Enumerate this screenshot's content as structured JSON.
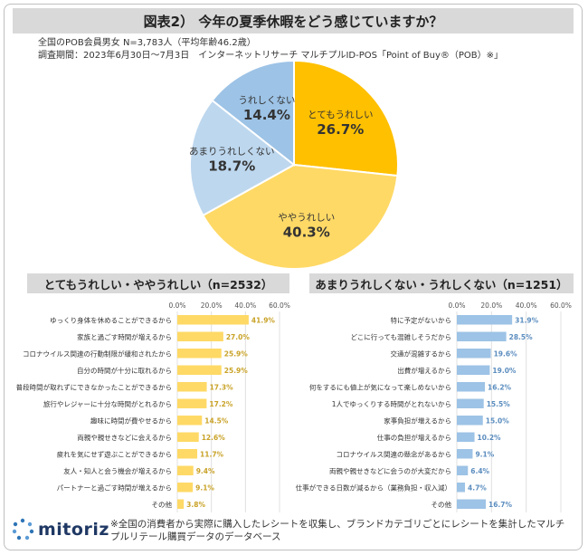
{
  "header": {
    "title": "図表2） 今年の夏季休暇をどう感じていますか？",
    "sample": "全国のPOB会員男女 N=3,783人（平均年齢46.2歳）",
    "period": "調査期間：2023年6月30日～7月3日　インターネットリサーチ マルチプルID-POS「Point of Buy®（POB）※」"
  },
  "colors": {
    "very_happy": "#ffc000",
    "somewhat_happy": "#ffd966",
    "not_very_happy": "#bdd7ee",
    "not_happy": "#9dc3e6",
    "left_bar": "#ffd966",
    "left_value": "#c9a227",
    "right_bar": "#9dc3e6",
    "right_value": "#5b8dbf"
  },
  "chart_data": [
    {
      "type": "pie",
      "categories": [
        "とてもうれしい",
        "ややうれしい",
        "あまりうれしくない",
        "うれしくない"
      ],
      "values": [
        26.7,
        40.3,
        18.7,
        14.4
      ],
      "value_labels": [
        "26.7%",
        "40.3%",
        "18.7%",
        "14.4%"
      ]
    },
    {
      "type": "bar",
      "title": "とてもうれしい・ややうれしい（n=2532）",
      "orientation": "horizontal",
      "xlim": [
        0,
        60
      ],
      "ticks": [
        "0.0%",
        "20.0%",
        "40.0%",
        "60.0%"
      ],
      "grid": true,
      "categories": [
        "ゆっくり身体を休めることができるから",
        "家族と過ごす時間が増えるから",
        "コロナウイルス関連の行動制限が緩和されたから",
        "自分の時間が十分に取れるから",
        "普段時間が取れずにできなかったことができるから",
        "旅行やレジャーに十分な時間がとれるから",
        "趣味に時間が費やせるから",
        "両親や親せきなどに会えるから",
        "疲れを気にせず遊ぶことができるから",
        "友人・知人と会う機会が増えるから",
        "パートナーと過ごす時間が増えるから",
        "その他"
      ],
      "values": [
        41.9,
        27.0,
        25.9,
        25.9,
        17.3,
        17.2,
        14.5,
        12.6,
        11.7,
        9.4,
        9.1,
        3.8
      ],
      "value_labels": [
        "41.9%",
        "27.0%",
        "25.9%",
        "25.9%",
        "17.3%",
        "17.2%",
        "14.5%",
        "12.6%",
        "11.7%",
        "9.4%",
        "9.1%",
        "3.8%"
      ]
    },
    {
      "type": "bar",
      "title": "あまりうれしくない・うれしくない（n=1251）",
      "orientation": "horizontal",
      "xlim": [
        0,
        60
      ],
      "ticks": [
        "0.0%",
        "20.0%",
        "40.0%",
        "60.0%"
      ],
      "grid": true,
      "categories": [
        "特に予定がないから",
        "どこに行っても混雑しそうだから",
        "交通が混雑するから",
        "出費が増えるから",
        "何をするにも値上が気になって楽しめないから",
        "1人でゆっくりする時間がとれないから",
        "家事負担が増えるから",
        "仕事の負担が増えるから",
        "コロナウイルス関連の懸念があるから",
        "両親や親せきなどに会うのが大変だから",
        "仕事ができる日数が減るから（業務負担・収入減）",
        "その他"
      ],
      "values": [
        31.9,
        28.5,
        19.6,
        19.0,
        16.2,
        15.5,
        15.0,
        10.2,
        9.1,
        6.4,
        4.7,
        16.7
      ],
      "value_labels": [
        "31.9%",
        "28.5%",
        "19.6%",
        "19.0%",
        "16.2%",
        "15.5%",
        "15.0%",
        "10.2%",
        "9.1%",
        "6.4%",
        "4.7%",
        "16.7%"
      ]
    }
  ],
  "footer": {
    "logo": "mitoriz",
    "note": "※全国の消費者から実際に購入したレシートを収集し、ブランドカテゴリごとにレシートを集計したマルチプルリテール購買データのデータベース"
  }
}
